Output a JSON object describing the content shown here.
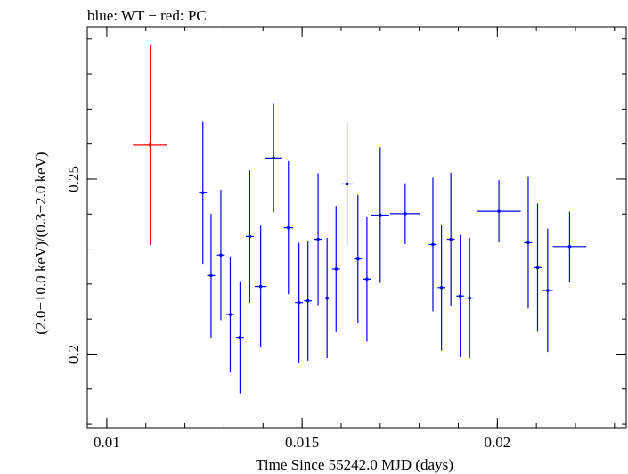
{
  "chart_data": {
    "type": "scatter",
    "title": "blue: WT − red: PC",
    "xlabel": "Time Since 55242.0 MJD (days)",
    "ylabel": "(2.0−10.0 keV)/(0.3−2.0 keV)",
    "xlim": [
      0.0095,
      0.0233
    ],
    "ylim": [
      0.179,
      0.2935
    ],
    "x_ticks": [
      {
        "value": 0.01,
        "label": "0.01"
      },
      {
        "value": 0.015,
        "label": "0.015"
      },
      {
        "value": 0.02,
        "label": "0.02"
      }
    ],
    "y_ticks": [
      {
        "value": 0.2,
        "label": "0.2"
      },
      {
        "value": 0.25,
        "label": "0.25"
      }
    ],
    "x_minor_step": 0.001,
    "y_minor_step": 0.01,
    "grid": false,
    "series": [
      {
        "name": "PC",
        "color": "#ff0000",
        "points": [
          {
            "x": 0.01111,
            "xerr": 0.00044,
            "y": 0.2597,
            "yerr": 0.0285
          }
        ]
      },
      {
        "name": "WT",
        "color": "#0000ff",
        "points": [
          {
            "x": 0.01246,
            "xerr": 0.0001,
            "y": 0.2461,
            "yerr": 0.0203
          },
          {
            "x": 0.01267,
            "xerr": 0.0001,
            "y": 0.2224,
            "yerr": 0.0177
          },
          {
            "x": 0.01292,
            "xerr": 0.0001,
            "y": 0.2283,
            "yerr": 0.0186
          },
          {
            "x": 0.01316,
            "xerr": 0.0001,
            "y": 0.2113,
            "yerr": 0.0166
          },
          {
            "x": 0.01341,
            "xerr": 0.0001,
            "y": 0.2048,
            "yerr": 0.016
          },
          {
            "x": 0.01366,
            "xerr": 0.0001,
            "y": 0.2336,
            "yerr": 0.0189
          },
          {
            "x": 0.01394,
            "xerr": 0.00015,
            "y": 0.2193,
            "yerr": 0.0174
          },
          {
            "x": 0.01427,
            "xerr": 0.00022,
            "y": 0.256,
            "yerr": 0.0155
          },
          {
            "x": 0.01465,
            "xerr": 0.00012,
            "y": 0.2361,
            "yerr": 0.019
          },
          {
            "x": 0.01492,
            "xerr": 0.0001,
            "y": 0.2147,
            "yerr": 0.0171
          },
          {
            "x": 0.01515,
            "xerr": 0.0001,
            "y": 0.2152,
            "yerr": 0.0171
          },
          {
            "x": 0.01541,
            "xerr": 0.0001,
            "y": 0.2328,
            "yerr": 0.0188
          },
          {
            "x": 0.01564,
            "xerr": 0.0001,
            "y": 0.216,
            "yerr": 0.0172
          },
          {
            "x": 0.01587,
            "xerr": 0.0001,
            "y": 0.2243,
            "yerr": 0.018
          },
          {
            "x": 0.01615,
            "xerr": 0.00015,
            "y": 0.2486,
            "yerr": 0.0175
          },
          {
            "x": 0.01643,
            "xerr": 0.0001,
            "y": 0.2272,
            "yerr": 0.0183
          },
          {
            "x": 0.01666,
            "xerr": 0.0001,
            "y": 0.2214,
            "yerr": 0.0178
          },
          {
            "x": 0.017,
            "xerr": 0.00023,
            "y": 0.2397,
            "yerr": 0.0194
          },
          {
            "x": 0.01764,
            "xerr": 0.00039,
            "y": 0.2401,
            "yerr": 0.0087
          },
          {
            "x": 0.01835,
            "xerr": 0.0001,
            "y": 0.2313,
            "yerr": 0.0191
          },
          {
            "x": 0.01857,
            "xerr": 0.0001,
            "y": 0.219,
            "yerr": 0.018
          },
          {
            "x": 0.01881,
            "xerr": 0.0001,
            "y": 0.2328,
            "yerr": 0.019
          },
          {
            "x": 0.01905,
            "xerr": 0.0001,
            "y": 0.2166,
            "yerr": 0.0175
          },
          {
            "x": 0.01929,
            "xerr": 0.0001,
            "y": 0.216,
            "yerr": 0.0172
          },
          {
            "x": 0.02004,
            "xerr": 0.00056,
            "y": 0.2408,
            "yerr": 0.0089
          },
          {
            "x": 0.02079,
            "xerr": 0.0001,
            "y": 0.2318,
            "yerr": 0.0188
          },
          {
            "x": 0.02103,
            "xerr": 0.0001,
            "y": 0.2247,
            "yerr": 0.0183
          },
          {
            "x": 0.02129,
            "xerr": 0.00013,
            "y": 0.2182,
            "yerr": 0.0176
          },
          {
            "x": 0.02185,
            "xerr": 0.00043,
            "y": 0.2307,
            "yerr": 0.01
          }
        ]
      }
    ]
  }
}
